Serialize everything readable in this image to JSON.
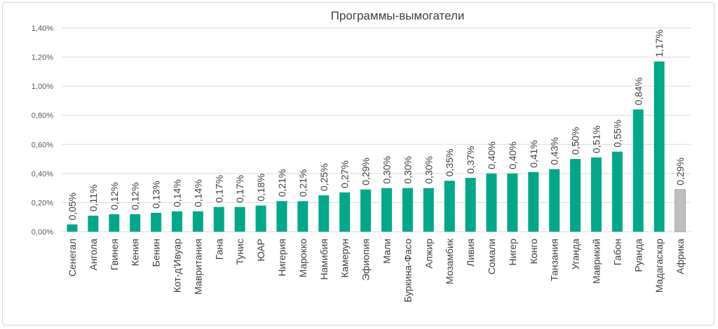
{
  "chart_data": {
    "type": "bar",
    "title": "Программы-вымогатели",
    "xlabel": "",
    "ylabel": "",
    "ylim": [
      0,
      1.4
    ],
    "yticks": [
      "0,00%",
      "0,20%",
      "0,40%",
      "0,60%",
      "0,80%",
      "1,00%",
      "1,20%",
      "1,40%"
    ],
    "grid": true,
    "categories": [
      "Сенегал",
      "Ангола",
      "Гвинея",
      "Кения",
      "Бенин",
      "Кот-д'Ивуар",
      "Мавритания",
      "Гана",
      "Тунис",
      "ЮАР",
      "Нигерия",
      "Марокко",
      "Намибия",
      "Камерун",
      "Эфиопия",
      "Мали",
      "Буркина-Фасо",
      "Алжир",
      "Мозамбик",
      "Ливия",
      "Сомали",
      "Нигер",
      "Конго",
      "Танзания",
      "Уганда",
      "Маврикий",
      "Габон",
      "Руанда",
      "Мадагаскар",
      "Африка"
    ],
    "values": [
      0.05,
      0.11,
      0.12,
      0.12,
      0.13,
      0.14,
      0.14,
      0.17,
      0.17,
      0.18,
      0.21,
      0.21,
      0.25,
      0.27,
      0.29,
      0.3,
      0.3,
      0.3,
      0.35,
      0.37,
      0.4,
      0.4,
      0.41,
      0.43,
      0.5,
      0.51,
      0.55,
      0.84,
      1.17,
      0.29
    ],
    "data_labels": [
      "0,05%",
      "0,11%",
      "0,12%",
      "0,12%",
      "0,13%",
      "0,14%",
      "0,14%",
      "0,17%",
      "0,17%",
      "0,18%",
      "0,21%",
      "0,21%",
      "0,25%",
      "0,27%",
      "0,29%",
      "0,30%",
      "0,30%",
      "0,30%",
      "0,35%",
      "0,37%",
      "0,40%",
      "0,40%",
      "0,41%",
      "0,43%",
      "0,50%",
      "0,51%",
      "0,55%",
      "0,84%",
      "1,17%",
      "0,29%"
    ],
    "colors": {
      "country": "#00A88A",
      "total": "#BFBFBF",
      "total_border": "#A6A6A6",
      "grid": "#D9D9D9"
    },
    "highlight_index": 29
  }
}
